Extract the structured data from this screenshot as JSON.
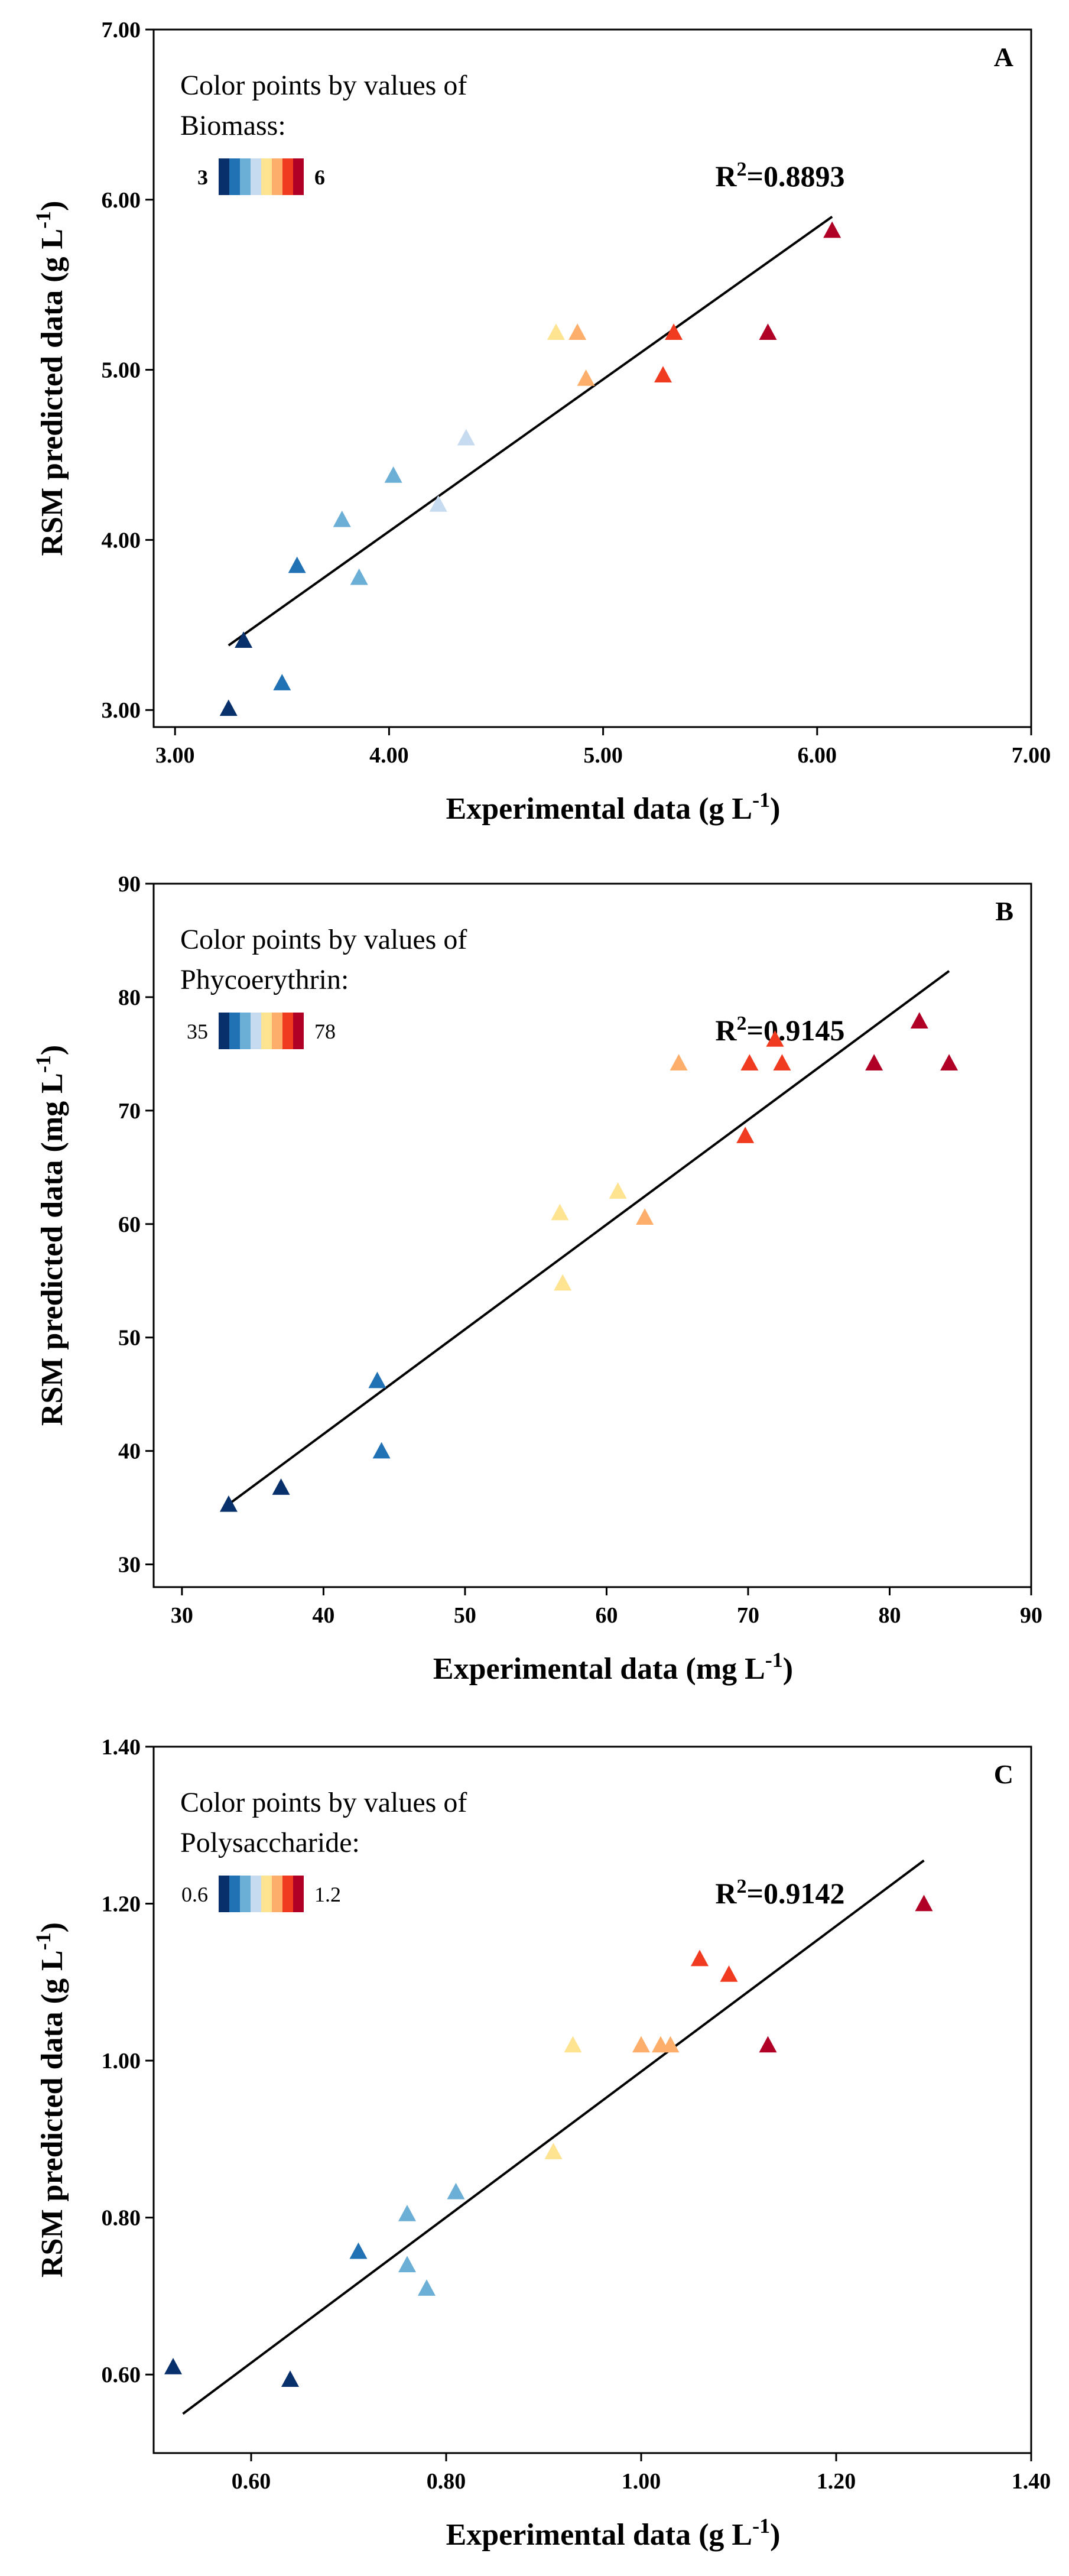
{
  "colors": {
    "scale": [
      "#08306b",
      "#2171b5",
      "#6baed6",
      "#c6dbef",
      "#fee391",
      "#fdae6b",
      "#f03b20",
      "#b10026"
    ],
    "axis": "#000000",
    "fit_line": "#000000"
  },
  "chart_data": [
    {
      "type": "scatter",
      "panel": "A",
      "xlabel": "Experimental data (g L",
      "xlabel_sup": "-1",
      "xlabel_tail": ")",
      "ylabel": "RSM predicted data (g L",
      "ylabel_sup": "-1",
      "ylabel_tail": ")",
      "xlim": [
        2.9,
        7.0
      ],
      "ylim": [
        2.9,
        7.0
      ],
      "xticks": [
        3.0,
        4.0,
        5.0,
        6.0,
        7.0
      ],
      "yticks": [
        3.0,
        4.0,
        5.0,
        6.0,
        7.0
      ],
      "xtick_labels": [
        "3.00",
        "4.00",
        "5.00",
        "6.00",
        "7.00"
      ],
      "ytick_labels": [
        "3.00",
        "4.00",
        "5.00",
        "6.00",
        "7.00"
      ],
      "legend_line1": "Color points by values of",
      "legend_line2": "Biomass:",
      "legend_min": "3",
      "legend_max": "6",
      "legend_bold": true,
      "color_min": 3,
      "color_max": 6,
      "r2_prefix": "R",
      "r2_sup": "2",
      "r2_value": "=0.8893",
      "fit_line": {
        "x": [
          3.25,
          6.07
        ],
        "y": [
          3.38,
          5.9
        ]
      },
      "points": [
        {
          "x": 3.25,
          "y": 3.01
        },
        {
          "x": 3.32,
          "y": 3.41
        },
        {
          "x": 3.5,
          "y": 3.16
        },
        {
          "x": 3.57,
          "y": 3.85
        },
        {
          "x": 3.78,
          "y": 4.12
        },
        {
          "x": 3.86,
          "y": 3.78
        },
        {
          "x": 4.02,
          "y": 4.38
        },
        {
          "x": 4.23,
          "y": 4.21
        },
        {
          "x": 4.36,
          "y": 4.6
        },
        {
          "x": 4.78,
          "y": 5.22
        },
        {
          "x": 4.88,
          "y": 5.22
        },
        {
          "x": 4.92,
          "y": 4.95
        },
        {
          "x": 5.28,
          "y": 4.97
        },
        {
          "x": 5.33,
          "y": 5.22
        },
        {
          "x": 5.77,
          "y": 5.22
        },
        {
          "x": 6.07,
          "y": 5.82
        }
      ]
    },
    {
      "type": "scatter",
      "panel": "B",
      "xlabel": "Experimental data (mg L",
      "xlabel_sup": "-1",
      "xlabel_tail": ")",
      "ylabel": "RSM predicted data (mg L",
      "ylabel_sup": "-1",
      "ylabel_tail": ")",
      "xlim": [
        28,
        90
      ],
      "ylim": [
        28,
        90
      ],
      "xticks": [
        30,
        40,
        50,
        60,
        70,
        80,
        90
      ],
      "yticks": [
        30,
        40,
        50,
        60,
        70,
        80,
        90
      ],
      "xtick_labels": [
        "30",
        "40",
        "50",
        "60",
        "70",
        "80",
        "90"
      ],
      "ytick_labels": [
        "30",
        "40",
        "50",
        "60",
        "70",
        "80",
        "90"
      ],
      "legend_line1": "Color points by values of",
      "legend_line2": "Phycoerythrin:",
      "legend_min": "35",
      "legend_max": "78",
      "legend_bold": false,
      "color_min": 35,
      "color_max": 78,
      "r2_prefix": "R",
      "r2_sup": "2",
      "r2_value": "=0.9145",
      "fit_line": {
        "x": [
          33.3,
          84.2
        ],
        "y": [
          35.3,
          82.3
        ]
      },
      "points": [
        {
          "x": 33.3,
          "y": 35.3
        },
        {
          "x": 37,
          "y": 36.8
        },
        {
          "x": 43.8,
          "y": 46.2
        },
        {
          "x": 44.1,
          "y": 40
        },
        {
          "x": 56.7,
          "y": 61
        },
        {
          "x": 56.9,
          "y": 54.8
        },
        {
          "x": 60.8,
          "y": 62.9
        },
        {
          "x": 62.7,
          "y": 60.6
        },
        {
          "x": 65.1,
          "y": 74.2
        },
        {
          "x": 69.8,
          "y": 67.8
        },
        {
          "x": 70.1,
          "y": 74.2
        },
        {
          "x": 71.9,
          "y": 76.3
        },
        {
          "x": 72.4,
          "y": 74.2
        },
        {
          "x": 78.9,
          "y": 74.2
        },
        {
          "x": 82.1,
          "y": 77.9
        },
        {
          "x": 84.2,
          "y": 74.2
        }
      ]
    },
    {
      "type": "scatter",
      "panel": "C",
      "xlabel": "Experimental data  (g L",
      "xlabel_sup": "-1",
      "xlabel_tail": ")",
      "ylabel": "RSM predicted data (g L",
      "ylabel_sup": "-1",
      "ylabel_tail": ")",
      "xlim": [
        0.5,
        1.4
      ],
      "ylim": [
        0.5,
        1.4
      ],
      "xticks": [
        0.6,
        0.8,
        1.0,
        1.2,
        1.4
      ],
      "yticks": [
        0.6,
        0.8,
        1.0,
        1.2,
        1.4
      ],
      "xtick_labels": [
        "0.60",
        "0.80",
        "1.00",
        "1.20",
        "1.40"
      ],
      "ytick_labels": [
        "0.60",
        "0.80",
        "1.00",
        "1.20",
        "1.40"
      ],
      "legend_line1": "Color points by values of",
      "legend_line2": "Polysaccharide:",
      "legend_min": "0.6",
      "legend_max": "1.2",
      "legend_bold": false,
      "color_min": 0.6,
      "color_max": 1.2,
      "r2_prefix": "R",
      "r2_sup": "2",
      "r2_value": "=0.9142",
      "fit_line": {
        "x": [
          0.53,
          1.29
        ],
        "y": [
          0.55,
          1.255
        ]
      },
      "points": [
        {
          "x": 0.52,
          "y": 0.61
        },
        {
          "x": 0.64,
          "y": 0.594
        },
        {
          "x": 0.71,
          "y": 0.757
        },
        {
          "x": 0.76,
          "y": 0.805
        },
        {
          "x": 0.76,
          "y": 0.74
        },
        {
          "x": 0.78,
          "y": 0.71
        },
        {
          "x": 0.81,
          "y": 0.833
        },
        {
          "x": 0.91,
          "y": 0.884
        },
        {
          "x": 0.93,
          "y": 1.02
        },
        {
          "x": 1.0,
          "y": 1.02
        },
        {
          "x": 1.02,
          "y": 1.02
        },
        {
          "x": 1.03,
          "y": 1.02
        },
        {
          "x": 1.06,
          "y": 1.13
        },
        {
          "x": 1.09,
          "y": 1.11
        },
        {
          "x": 1.13,
          "y": 1.02
        },
        {
          "x": 1.29,
          "y": 1.2
        }
      ]
    }
  ]
}
